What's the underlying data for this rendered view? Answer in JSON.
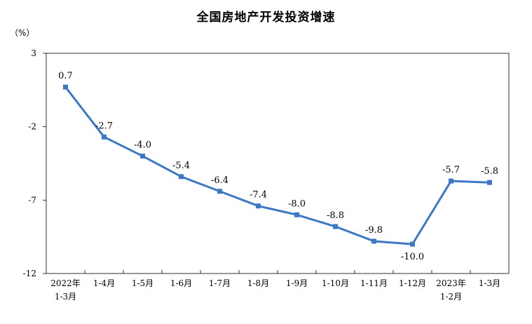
{
  "chart_data": {
    "type": "line",
    "title": "全国房地产开发投资增速",
    "unit": "（%）",
    "categories": [
      [
        "2022年",
        "1-3月"
      ],
      [
        "1-4月"
      ],
      [
        "1-5月"
      ],
      [
        "1-6月"
      ],
      [
        "1-7月"
      ],
      [
        "1-8月"
      ],
      [
        "1-9月"
      ],
      [
        "1-10月"
      ],
      [
        "1-11月"
      ],
      [
        "1-12月"
      ],
      [
        "2023年",
        "1-2月"
      ],
      [
        "1-3月"
      ]
    ],
    "values": [
      0.7,
      -2.7,
      -4.0,
      -5.4,
      -6.4,
      -7.4,
      -8.0,
      -8.8,
      -9.8,
      -10.0,
      -5.7,
      -5.8
    ],
    "data_labels": [
      "0.7",
      "-2.7",
      "-4.0",
      "-5.4",
      "-6.4",
      "-7.4",
      "-8.0",
      "-8.8",
      "-9.8",
      "-10.0",
      "-5.7",
      "-5.8"
    ],
    "yticks": [
      "3",
      "-2",
      "-7",
      "-12"
    ],
    "ytick_values": [
      3,
      -2,
      -7,
      -12
    ],
    "ylim": [
      -12,
      3
    ],
    "grid": false,
    "legend": "none",
    "line_color": "#3d78c6"
  }
}
